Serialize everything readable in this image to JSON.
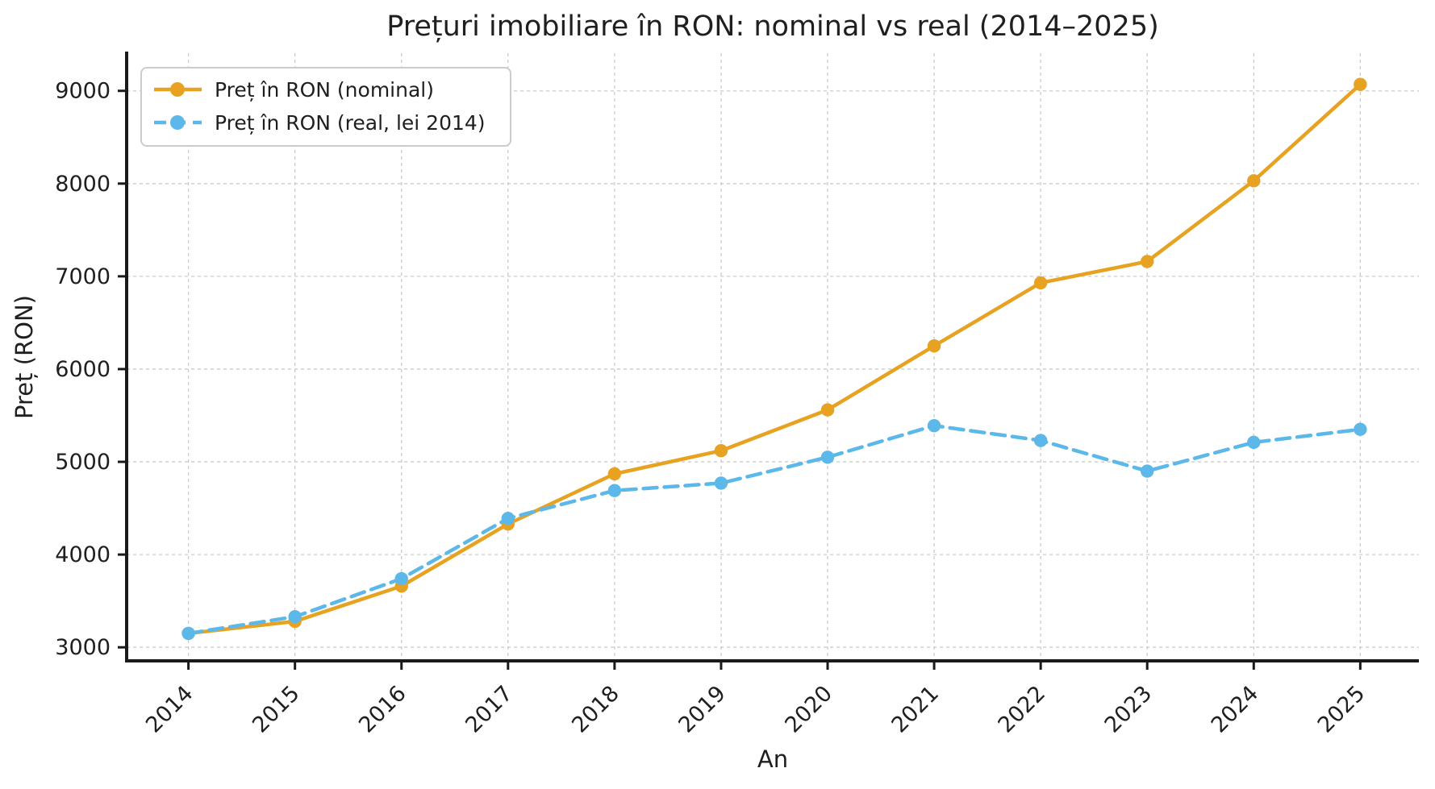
{
  "figure": {
    "title": "Prețuri imobiliare în RON: nominal vs real (2014–2025)",
    "background": "#ffffff",
    "text_color": "#1f1f1f",
    "grid_color": "#cccccc",
    "spine_color": "#1a1a1a",
    "legend_border_color": "#cccccc"
  },
  "chart_data": {
    "type": "line",
    "title": "Prețuri imobiliare în RON: nominal vs real (2014–2025)",
    "xlabel": "An",
    "ylabel": "Preț (RON)",
    "categories": [
      2014,
      2015,
      2016,
      2017,
      2018,
      2019,
      2020,
      2021,
      2022,
      2023,
      2024,
      2025
    ],
    "series": [
      {
        "name": "Preț în RON (nominal)",
        "color": "#E8A221",
        "line_style": "solid",
        "marker": "circle",
        "values": [
          3150,
          3280,
          3660,
          4330,
          4870,
          5120,
          5560,
          6250,
          6930,
          7160,
          8030,
          9070
        ]
      },
      {
        "name": "Preț în RON (real, lei 2014)",
        "color": "#5BB8E8",
        "line_style": "dashed",
        "marker": "circle",
        "values": [
          3150,
          3330,
          3740,
          4390,
          4690,
          4770,
          5050,
          5390,
          5230,
          4900,
          5210,
          5350
        ]
      }
    ],
    "y_ticks": [
      3000,
      4000,
      5000,
      6000,
      7000,
      8000,
      9000
    ],
    "ylim": [
      2854,
      9406
    ],
    "xlim": [
      2013.42,
      2025.55
    ],
    "grid": true,
    "grid_style": "dashed",
    "legend_position": "upper left",
    "x_tick_rotation": 45
  }
}
